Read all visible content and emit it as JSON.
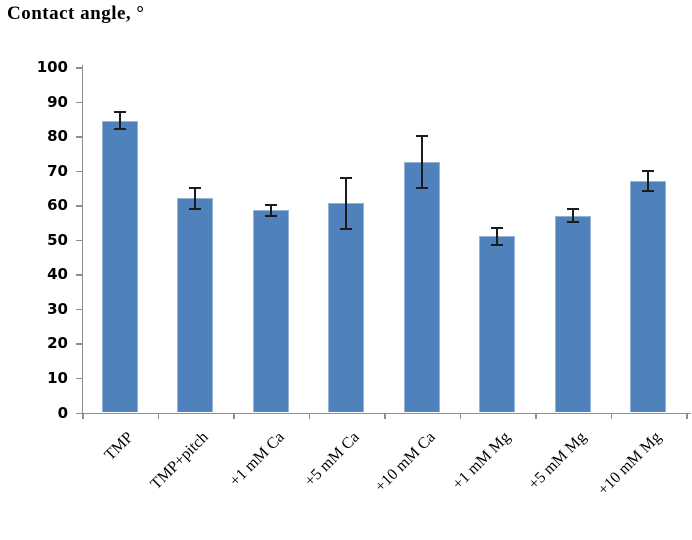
{
  "figure": {
    "background": "#ffffff"
  },
  "chart_data": {
    "type": "bar",
    "title": "Contact angle,  °",
    "categories": [
      "TMP",
      "TMP+pitch",
      "+1 mM Ca",
      "+5 mM Ca",
      "+10 mM Ca",
      "+1 mM Mg",
      "+5 mM Mg",
      "+10 mM Mg"
    ],
    "series": [
      {
        "name": "Contact angle",
        "values": [
          84.5,
          62,
          58.5,
          60.5,
          72.5,
          51,
          57,
          67
        ],
        "errors": [
          2.5,
          3,
          1.5,
          7.5,
          7.5,
          2.5,
          2,
          3
        ]
      }
    ],
    "xlabel": "",
    "ylabel": "Contact angle, °",
    "ylim": [
      0,
      100
    ],
    "ytick_interval": 10,
    "grid": false,
    "legend": false,
    "bar_color": "#4f81bd",
    "bar_edge_color": "#95b3d7",
    "error_bar_color": "#1c1c1c",
    "axis_color": "#8e8e8e",
    "tick_label_color": "#000000"
  }
}
